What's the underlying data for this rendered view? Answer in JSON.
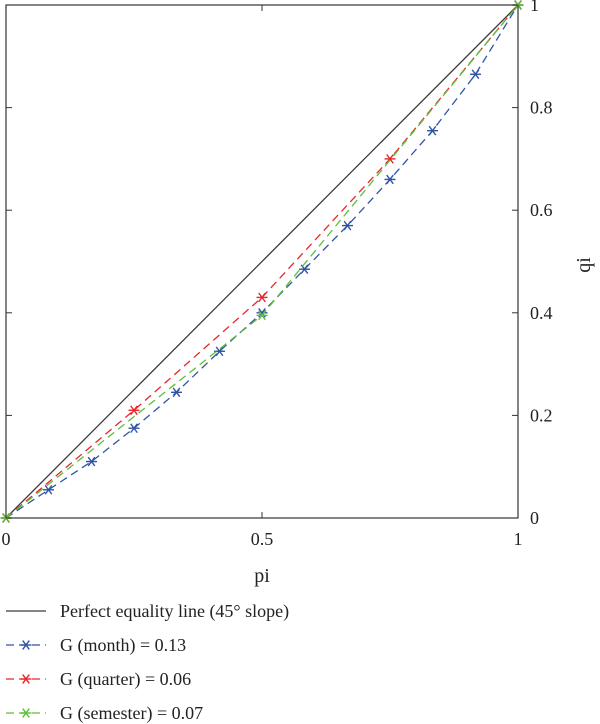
{
  "chart_data": {
    "type": "line",
    "title": "",
    "xlabel": "pi",
    "ylabel": "qi",
    "xlim": [
      0,
      1
    ],
    "ylim": [
      0,
      1
    ],
    "x_ticks": [
      "0",
      "0.5",
      "1"
    ],
    "y_ticks": [
      "0",
      "0.2",
      "0.4",
      "0.6",
      "0.8",
      "1"
    ],
    "grid": false,
    "legend_position": "bottom",
    "series": [
      {
        "name": "Perfect equality line (45° slope)",
        "color": "#3a3a3a",
        "style": "solid",
        "marker": "none",
        "x": [
          0,
          1
        ],
        "y": [
          0,
          1
        ]
      },
      {
        "name": "G (month) = 0.13",
        "color": "#3055a4",
        "style": "dashed",
        "marker": "asterisk",
        "x": [
          0,
          0.083,
          0.167,
          0.25,
          0.333,
          0.417,
          0.5,
          0.583,
          0.667,
          0.75,
          0.833,
          0.917,
          1
        ],
        "y": [
          0,
          0.055,
          0.11,
          0.175,
          0.245,
          0.325,
          0.4,
          0.485,
          0.57,
          0.66,
          0.755,
          0.865,
          1
        ]
      },
      {
        "name": "G (quarter) = 0.06",
        "color": "#e8262b",
        "style": "dashed",
        "marker": "asterisk",
        "x": [
          0,
          0.25,
          0.5,
          0.75,
          1
        ],
        "y": [
          0,
          0.21,
          0.43,
          0.7,
          1
        ]
      },
      {
        "name": "G (semester) = 0.07",
        "color": "#5cbf3a",
        "style": "dashed",
        "marker": "asterisk",
        "x": [
          0,
          0.5,
          1
        ],
        "y": [
          0,
          0.395,
          1
        ]
      }
    ]
  }
}
